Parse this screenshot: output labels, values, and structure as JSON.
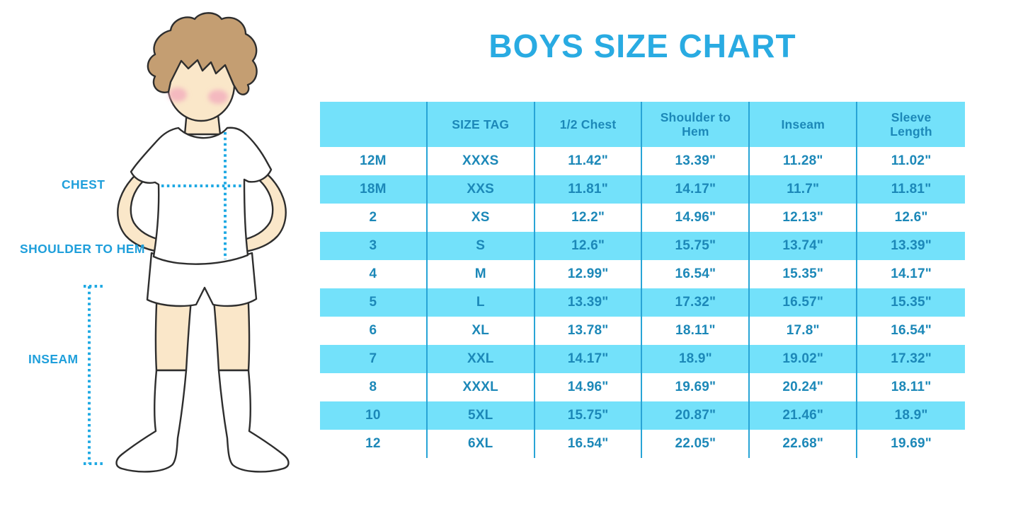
{
  "chart_data": {
    "type": "table",
    "title": "BOYS SIZE CHART",
    "columns": [
      "",
      "SIZE TAG",
      "1/2 Chest",
      "Shoulder to Hem",
      "Inseam",
      "Sleeve Length"
    ],
    "rows": [
      [
        "12M",
        "XXXS",
        "11.42\"",
        "13.39\"",
        "11.28\"",
        "11.02\""
      ],
      [
        "18M",
        "XXS",
        "11.81\"",
        "14.17\"",
        "11.7\"",
        "11.81\""
      ],
      [
        "2",
        "XS",
        "12.2\"",
        "14.96\"",
        "12.13\"",
        "12.6\""
      ],
      [
        "3",
        "S",
        "12.6\"",
        "15.75\"",
        "13.74\"",
        "13.39\""
      ],
      [
        "4",
        "M",
        "12.99\"",
        "16.54\"",
        "15.35\"",
        "14.17\""
      ],
      [
        "5",
        "L",
        "13.39\"",
        "17.32\"",
        "16.57\"",
        "15.35\""
      ],
      [
        "6",
        "XL",
        "13.78\"",
        "18.11\"",
        "17.8\"",
        "16.54\""
      ],
      [
        "7",
        "XXL",
        "14.17\"",
        "18.9\"",
        "19.02\"",
        "17.32\""
      ],
      [
        "8",
        "XXXL",
        "14.96\"",
        "19.69\"",
        "20.24\"",
        "18.11\""
      ],
      [
        "10",
        "5XL",
        "15.75\"",
        "20.87\"",
        "21.46\"",
        "18.9\""
      ],
      [
        "12",
        "6XL",
        "16.54\"",
        "22.05\"",
        "22.68\"",
        "19.69\""
      ]
    ],
    "layout": {
      "row_striping": [
        "cyan",
        "white"
      ],
      "header_background": "cyan",
      "grid": "vertical-dividers-only"
    }
  },
  "illustration": {
    "labels": {
      "chest": "CHEST",
      "shoulder_to_hem": "SHOULDER TO HEM",
      "inseam": "INSEAM"
    }
  },
  "colors": {
    "title_blue": "#29ABE2",
    "label_blue": "#1F9FDB",
    "table_text_blue": "#1C88B8",
    "cell_cyan": "#73E1FA",
    "divider_blue": "#28A4D6",
    "dotted_line_blue": "#1FA9E3",
    "skin": "#FAE7C9",
    "hair_brown": "#C49E72",
    "blush_pink": "#F2A9BC",
    "outline_dark": "#2E2E2E",
    "background": "#FFFFFF"
  }
}
